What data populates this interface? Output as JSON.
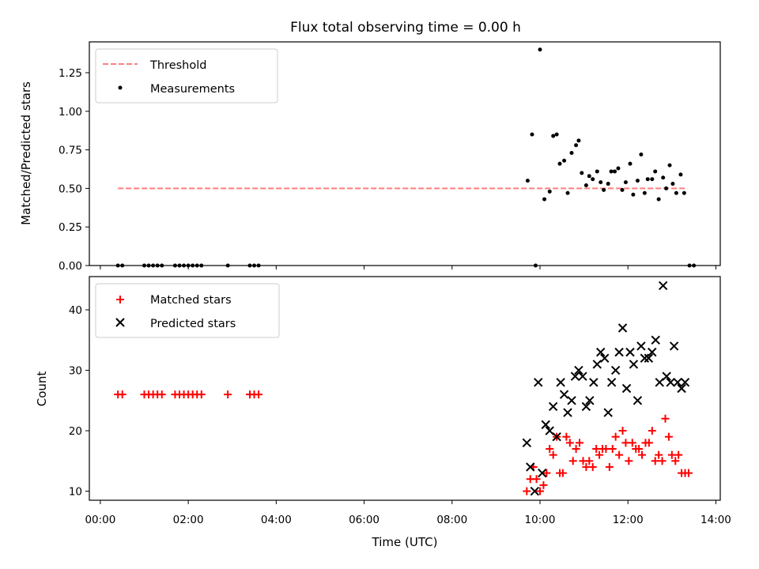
{
  "title": "Flux total observing time = 0.00 h",
  "xlabel": "Time (UTC)",
  "x_tick_labels": [
    "00:00",
    "02:00",
    "04:00",
    "06:00",
    "08:00",
    "10:00",
    "12:00",
    "14:00"
  ],
  "colors": {
    "threshold": "#ff7f7f",
    "measurements": "#000000",
    "matched": "#ff0000",
    "predicted": "#000000"
  },
  "chart_data": [
    {
      "type": "scatter",
      "panel": "top",
      "ylabel": "Matched/Predicted stars",
      "xlim": [
        "-0.25",
        "14.1"
      ],
      "x_unit": "hours UTC",
      "ylim": [
        0,
        1.45
      ],
      "y_tick_labels": [
        "0.00",
        "0.25",
        "0.50",
        "0.75",
        "1.00",
        "1.25"
      ],
      "legend_position": "upper-left",
      "threshold": {
        "name": "Threshold",
        "y": 0.5,
        "x_range": [
          0.4,
          13.35
        ]
      },
      "series": [
        {
          "name": "Measurements",
          "x": [
            0.4,
            0.5,
            1.0,
            1.1,
            1.2,
            1.3,
            1.4,
            1.7,
            1.8,
            1.9,
            2.0,
            2.1,
            2.2,
            2.3,
            2.9,
            3.4,
            3.5,
            3.6,
            9.72,
            9.82,
            9.9,
            10.0,
            10.1,
            10.22,
            10.3,
            10.38,
            10.45,
            10.55,
            10.63,
            10.72,
            10.82,
            10.88,
            10.95,
            11.05,
            11.12,
            11.2,
            11.3,
            11.38,
            11.45,
            11.55,
            11.62,
            11.7,
            11.78,
            11.87,
            11.95,
            12.05,
            12.12,
            12.22,
            12.3,
            12.38,
            12.45,
            12.55,
            12.62,
            12.7,
            12.8,
            12.87,
            12.95,
            13.02,
            13.1,
            13.2,
            13.28,
            13.4,
            13.5
          ],
          "y": [
            0,
            0,
            0,
            0,
            0,
            0,
            0,
            0,
            0,
            0,
            0,
            0,
            0,
            0,
            0,
            0,
            0,
            0,
            0.55,
            0.85,
            0,
            1.4,
            0.43,
            0.48,
            0.84,
            0.85,
            0.66,
            0.68,
            0.47,
            0.73,
            0.78,
            0.81,
            0.6,
            0.52,
            0.58,
            0.56,
            0.61,
            0.54,
            0.49,
            0.53,
            0.61,
            0.61,
            0.63,
            0.49,
            0.54,
            0.66,
            0.46,
            0.55,
            0.72,
            0.47,
            0.56,
            0.56,
            0.61,
            0.43,
            0.57,
            0.5,
            0.65,
            0.53,
            0.47,
            0.59,
            0.47,
            0,
            0
          ]
        }
      ]
    },
    {
      "type": "scatter",
      "panel": "bottom",
      "ylabel": "Count",
      "xlim": [
        "-0.25",
        "14.1"
      ],
      "x_unit": "hours UTC",
      "ylim": [
        8.5,
        45.5
      ],
      "y_ticks": [
        10,
        20,
        30,
        40
      ],
      "y_tick_labels": [
        "10",
        "20",
        "30",
        "40"
      ],
      "legend_position": "upper-left",
      "series": [
        {
          "name": "Matched stars",
          "marker": "plus",
          "x": [
            0.4,
            0.5,
            1.0,
            1.1,
            1.2,
            1.3,
            1.4,
            1.7,
            1.8,
            1.9,
            2.0,
            2.1,
            2.2,
            2.3,
            2.9,
            3.4,
            3.5,
            3.6,
            9.7,
            9.78,
            9.85,
            9.92,
            10.0,
            10.08,
            10.15,
            10.22,
            10.3,
            10.38,
            10.45,
            10.52,
            10.6,
            10.68,
            10.75,
            10.82,
            10.9,
            10.98,
            11.05,
            11.12,
            11.2,
            11.28,
            11.35,
            11.42,
            11.5,
            11.58,
            11.65,
            11.72,
            11.8,
            11.88,
            11.95,
            12.02,
            12.1,
            12.18,
            12.25,
            12.32,
            12.4,
            12.48,
            12.55,
            12.62,
            12.7,
            12.78,
            12.85,
            12.93,
            13.0,
            13.08,
            13.15,
            13.22,
            13.3,
            13.38
          ],
          "y": [
            26,
            26,
            26,
            26,
            26,
            26,
            26,
            26,
            26,
            26,
            26,
            26,
            26,
            26,
            26,
            26,
            26,
            26,
            10,
            12,
            14,
            12,
            10,
            11,
            13,
            17,
            16,
            19,
            13,
            13,
            19,
            18,
            15,
            17,
            18,
            15,
            14,
            15,
            14,
            17,
            16,
            17,
            17,
            14,
            17,
            19,
            16,
            20,
            18,
            15,
            18,
            17,
            17,
            16,
            18,
            18,
            20,
            15,
            16,
            15,
            22,
            19,
            16,
            15,
            16,
            13,
            13,
            13
          ]
        },
        {
          "name": "Predicted stars",
          "marker": "x",
          "x": [
            9.7,
            9.78,
            9.88,
            9.96,
            10.05,
            10.13,
            10.22,
            10.3,
            10.38,
            10.47,
            10.55,
            10.63,
            10.72,
            10.8,
            10.88,
            10.97,
            11.05,
            11.13,
            11.22,
            11.3,
            11.38,
            11.47,
            11.55,
            11.63,
            11.72,
            11.8,
            11.88,
            11.97,
            12.05,
            12.13,
            12.22,
            12.3,
            12.38,
            12.47,
            12.55,
            12.63,
            12.72,
            12.8,
            12.88,
            12.97,
            13.05,
            13.13,
            13.22,
            13.3
          ],
          "y": [
            18,
            14,
            10,
            28,
            13,
            21,
            20,
            24,
            19,
            28,
            26,
            23,
            25,
            29,
            30,
            29,
            24,
            25,
            28,
            31,
            33,
            32,
            23,
            28,
            30,
            33,
            37,
            27,
            33,
            31,
            25,
            34,
            32,
            32,
            33,
            35,
            28,
            44,
            29,
            28,
            34,
            28,
            27,
            28
          ]
        }
      ]
    }
  ]
}
